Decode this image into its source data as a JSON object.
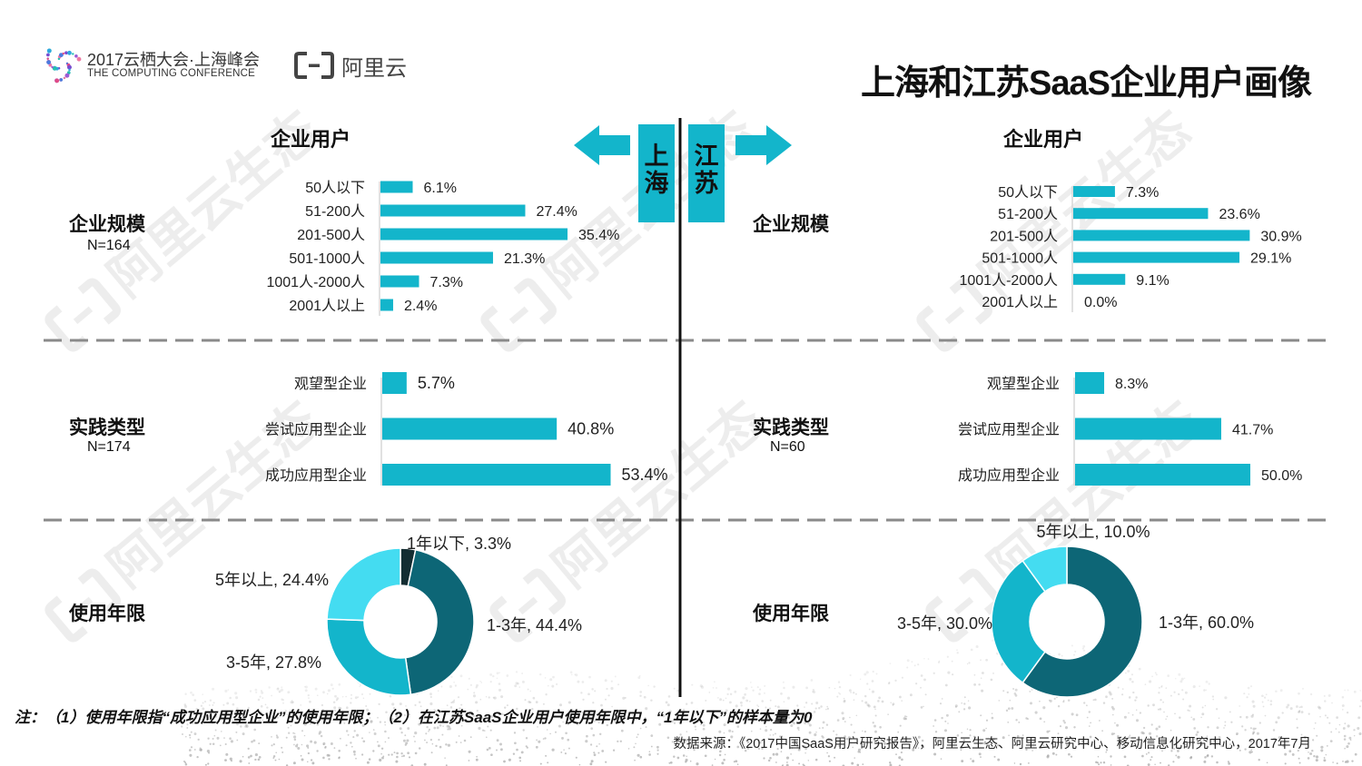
{
  "header": {
    "conference_title": "2017云栖大会·上海峰会",
    "conference_subtitle": "THE COMPUTING CONFERENCE",
    "brand_name": "阿里云",
    "page_title": "上海和江苏SaaS企业用户画像"
  },
  "regions": {
    "left": "上海",
    "right": "江苏"
  },
  "watermark_text": "阿里云生态",
  "colors": {
    "bar": "#13B5CB",
    "donut_dark": "#0D6676",
    "donut_mid": "#13B5CB",
    "donut_light": "#44DCF1",
    "donut_black": "#142D32",
    "arrow": "#13B5CB"
  },
  "chart_data": [
    {
      "region": "上海",
      "type": "bar",
      "orientation": "horizontal",
      "column_header": "企业用户",
      "section_title": "企业规模",
      "n_label": "N=164",
      "categories": [
        "50人以下",
        "51-200人",
        "201-500人",
        "501-1000人",
        "1001人-2000人",
        "2001人以上"
      ],
      "values": [
        6.1,
        27.4,
        35.4,
        21.3,
        7.3,
        2.4
      ],
      "labels": [
        "6.1%",
        "27.4%",
        "35.4%",
        "21.3%",
        "7.3%",
        "2.4%"
      ],
      "unit": "%"
    },
    {
      "region": "江苏",
      "type": "bar",
      "orientation": "horizontal",
      "column_header": "企业用户",
      "section_title": "企业规模",
      "categories": [
        "50人以下",
        "51-200人",
        "201-500人",
        "501-1000人",
        "1001人-2000人",
        "2001人以上"
      ],
      "values": [
        7.3,
        23.6,
        30.9,
        29.1,
        9.1,
        0.0
      ],
      "labels": [
        "7.3%",
        "23.6%",
        "30.9%",
        "29.1%",
        "9.1%",
        "0.0%"
      ],
      "unit": "%"
    },
    {
      "region": "上海",
      "type": "bar",
      "orientation": "horizontal",
      "section_title": "实践类型",
      "n_label": "N=174",
      "categories": [
        "观望型企业",
        "尝试应用型企业",
        "成功应用型企业"
      ],
      "values": [
        5.7,
        40.8,
        53.4
      ],
      "labels": [
        "5.7%",
        "40.8%",
        "53.4%"
      ],
      "unit": "%"
    },
    {
      "region": "江苏",
      "type": "bar",
      "orientation": "horizontal",
      "section_title": "实践类型",
      "n_label": "N=60",
      "categories": [
        "观望型企业",
        "尝试应用型企业",
        "成功应用型企业"
      ],
      "values": [
        8.3,
        41.7,
        50.0
      ],
      "labels": [
        "8.3%",
        "41.7%",
        "50.0%"
      ],
      "unit": "%"
    },
    {
      "region": "上海",
      "type": "pie",
      "donut": true,
      "section_title": "使用年限",
      "slices": [
        {
          "label": "1年以下, 3.3%",
          "value": 3.3,
          "color": "#142D32"
        },
        {
          "label": "1-3年, 44.4%",
          "value": 44.4,
          "color": "#0D6676"
        },
        {
          "label": "3-5年, 27.8%",
          "value": 27.8,
          "color": "#13B5CB"
        },
        {
          "label": "5年以上, 24.4%",
          "value": 24.4,
          "color": "#44DCF1"
        }
      ]
    },
    {
      "region": "江苏",
      "type": "pie",
      "donut": true,
      "section_title": "使用年限",
      "slices": [
        {
          "label": "1-3年, 60.0%",
          "value": 60.0,
          "color": "#0D6676"
        },
        {
          "label": "3-5年, 30.0%",
          "value": 30.0,
          "color": "#13B5CB"
        },
        {
          "label": "5年以上, 10.0%",
          "value": 10.0,
          "color": "#44DCF1"
        }
      ]
    }
  ],
  "footer": {
    "note": "注：（1）使用年限指“成功应用型企业”的使用年限；（2）在江苏SaaS企业用户使用年限中，“1年以下”的样本量为0",
    "source": "数据来源：《2017中国SaaS用户研究报告》，阿里云生态、阿里云研究中心、移动信息化研究中心，2017年7月"
  }
}
